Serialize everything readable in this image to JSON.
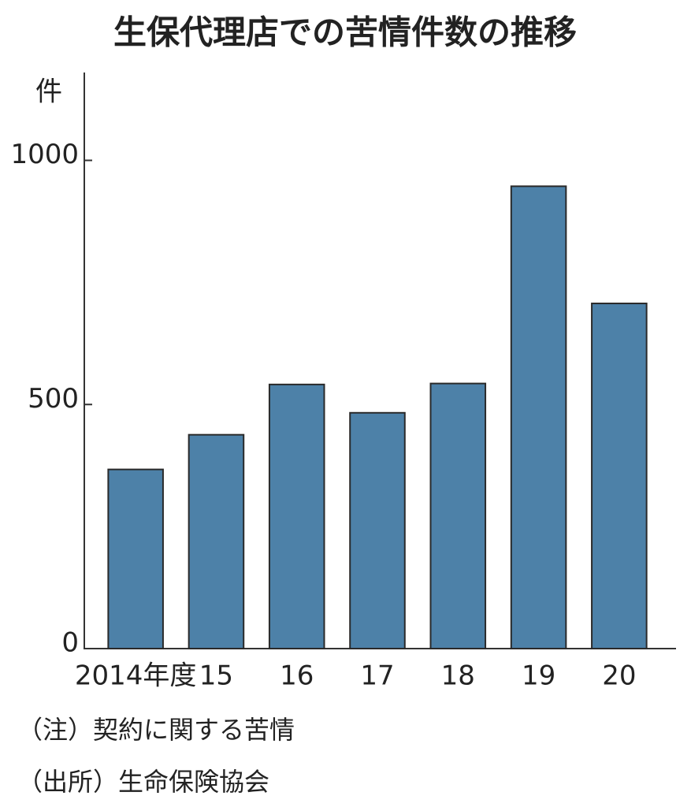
{
  "chart_data": {
    "type": "bar",
    "title": "生保代理店での苦情件数の推移",
    "y_label": "件",
    "categories": [
      "2014年度",
      "15",
      "16",
      "17",
      "18",
      "19",
      "20"
    ],
    "values": [
      367,
      438,
      541,
      483,
      543,
      947,
      707
    ],
    "color": "#4d81a8",
    "ylim": [
      0,
      1180
    ],
    "yticks": [
      0,
      500,
      1000
    ],
    "notes": [
      "（注）契約に関する苦情",
      "（出所）生命保険協会"
    ]
  }
}
